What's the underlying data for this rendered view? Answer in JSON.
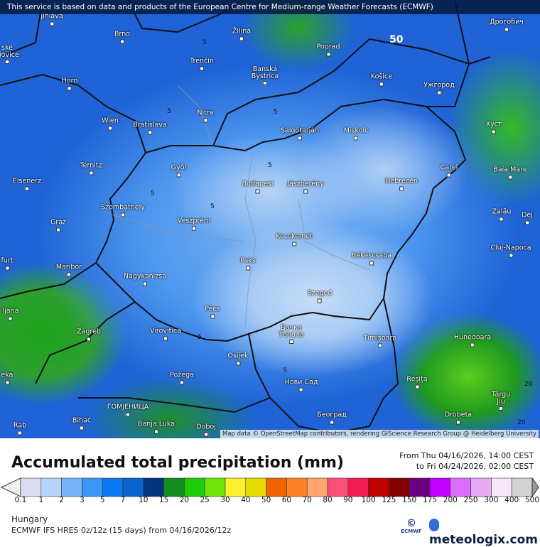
{
  "banner": "This service is based on data and products of the European Centre for Medium-range Weather Forecasts (ECMWF)",
  "attribution": "Map data © OpenStreetMap contributors, rendering GIScience Research Group @ Heidelberg University",
  "title": "Accumulated total precipitation (mm)",
  "period_from": "From Thu 04/16/2026, 14:00 CEST",
  "period_to": "to Fri 04/24/2026, 02:00 CEST",
  "region": "Hungary",
  "model": "ECMWF IFS HRES 0z/12z (15 days) from  04/16/2026/12z",
  "logos": {
    "ecmwf": "ECMWF",
    "meteologix": "meteologix.com"
  },
  "contour_labels": [
    "5",
    "5",
    "5",
    "5",
    "5",
    "5",
    "5",
    "5",
    "50",
    "20",
    "20"
  ],
  "legend": {
    "ticks": [
      "0.1",
      "1",
      "2",
      "3",
      "5",
      "7",
      "10",
      "15",
      "20",
      "25",
      "30",
      "40",
      "50",
      "60",
      "70",
      "80",
      "90",
      "100",
      "125",
      "150",
      "175",
      "200",
      "250",
      "300",
      "400",
      "500"
    ],
    "colors": [
      "#dcdcf0",
      "#b4d4fa",
      "#78b4f8",
      "#3c96f6",
      "#0a7af4",
      "#0a64cc",
      "#05327c",
      "#148c1e",
      "#1ecd0a",
      "#6ee60a",
      "#fff02d",
      "#e6dc00",
      "#f06400",
      "#ff8228",
      "#ffa56e",
      "#fa5078",
      "#f01e50",
      "#be0000",
      "#870000",
      "#6e0082",
      "#c300ff",
      "#dc6eff",
      "#e6aaf5",
      "#f5e6fa",
      "#d2d2d2"
    ],
    "under_color": "#f0f0f0",
    "over_color": "#999999"
  },
  "cities": [
    "Jihlava",
    "Brno",
    "Žilina",
    "Poprad",
    "Дрогобич",
    "Trenčín",
    "Banská\nBystrica",
    "Košice",
    "Ужгород",
    "Horn",
    "Nitra",
    "Wien",
    "Bratislava",
    "Salgótarján",
    "Miskolc",
    "Хуст",
    "Ternitz",
    "Győr",
    "Budapest",
    "Jászberény",
    "Debrecen",
    "Carei",
    "Baia Mare",
    "Eisenerz",
    "Szombathely",
    "Veszprém",
    "Zalău",
    "Graz",
    "Dej",
    "Kecskemét",
    "Cluj-Napoca",
    "Maribor",
    "Paks",
    "Békéscsaba",
    "Nagykanizsa",
    "Szeged",
    "Pécs",
    "ljana",
    "Zagreb",
    "Virovitica",
    "Бачка\nТопола",
    "Timișoara",
    "Hunedoara",
    "Osijek",
    "Požega",
    "Нови Сад",
    "Reșița",
    "Târgu\nJiu",
    "ГОМЈЕНИЦА",
    "Bihać",
    "Banja Luka",
    "Doboj",
    "Београд",
    "Drobeta",
    "Rab",
    "eka",
    "furt",
    "ské\nějovice"
  ]
}
